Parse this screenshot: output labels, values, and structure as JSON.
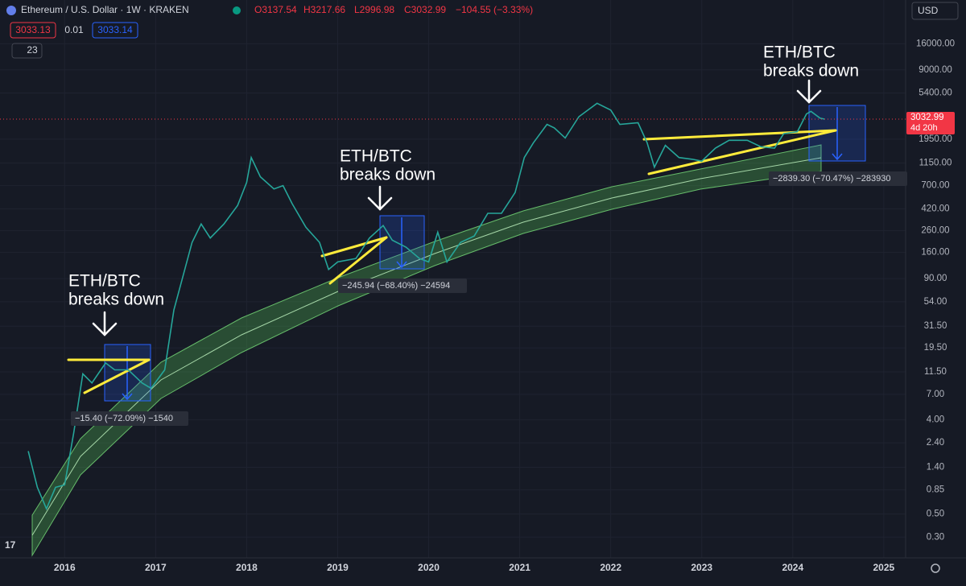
{
  "header": {
    "symbol": "Ethereum / U.S. Dollar · 1W · KRAKEN",
    "open": "O3137.54",
    "high": "H3217.66",
    "low": "L2996.98",
    "close": "C3032.99",
    "change": "−104.55 (−3.33%)",
    "bid": "3033.13",
    "spread": "0.01",
    "ask": "3033.14",
    "indicator_count": "23",
    "currency": "USD"
  },
  "chart_data": {
    "type": "line",
    "log_scale": true,
    "color": "#26a69a",
    "x": [
      2015.6,
      2015.7,
      2015.8,
      2015.9,
      2016.0,
      2016.1,
      2016.2,
      2016.3,
      2016.45,
      2016.55,
      2016.7,
      2016.85,
      2016.95,
      2017.1,
      2017.2,
      2017.4,
      2017.5,
      2017.6,
      2017.75,
      2017.9,
      2018.0,
      2018.05,
      2018.15,
      2018.3,
      2018.4,
      2018.5,
      2018.65,
      2018.8,
      2018.9,
      2019.0,
      2019.2,
      2019.35,
      2019.5,
      2019.6,
      2019.75,
      2019.9,
      2020.0,
      2020.1,
      2020.2,
      2020.35,
      2020.5,
      2020.65,
      2020.8,
      2020.95,
      2021.05,
      2021.15,
      2021.3,
      2021.38,
      2021.5,
      2021.65,
      2021.85,
      2022.0,
      2022.1,
      2022.3,
      2022.4,
      2022.48,
      2022.6,
      2022.75,
      2022.9,
      2023.0,
      2023.15,
      2023.3,
      2023.5,
      2023.65,
      2023.8,
      2023.9,
      2024.05,
      2024.15,
      2024.2,
      2024.3,
      2024.35
    ],
    "values": [
      2.0,
      0.9,
      0.56,
      0.9,
      0.95,
      3,
      11,
      9,
      14,
      12,
      12,
      9,
      8,
      12,
      45,
      200,
      300,
      220,
      300,
      450,
      750,
      1300,
      850,
      650,
      700,
      470,
      280,
      200,
      110,
      130,
      140,
      220,
      290,
      210,
      180,
      140,
      130,
      250,
      130,
      200,
      230,
      380,
      380,
      600,
      1300,
      1800,
      2700,
      2500,
      2000,
      3200,
      4300,
      3700,
      2700,
      2800,
      1800,
      1050,
      1700,
      1300,
      1250,
      1200,
      1600,
      1900,
      1900,
      1650,
      1600,
      2200,
      2300,
      3400,
      3600,
      3100,
      3032.99
    ],
    "price_label": "3032.99",
    "countdown": "4d 20h",
    "xlim": [
      2015.29,
      2025.24
    ],
    "xticks": [
      2016,
      2017,
      2018,
      2019,
      2020,
      2021,
      2022,
      2023,
      2024,
      2025
    ],
    "ylim": [
      0.19,
      42000
    ],
    "yticks": [
      {
        "value": 16000,
        "label": "16000.00"
      },
      {
        "value": 9000,
        "label": "9000.00"
      },
      {
        "value": 5400,
        "label": "5400.00"
      },
      {
        "value": 1950,
        "label": "1950.00"
      },
      {
        "value": 1150,
        "label": "1150.00"
      },
      {
        "value": 700,
        "label": "700.00"
      },
      {
        "value": 420,
        "label": "420.00"
      },
      {
        "value": 260,
        "label": "260.00"
      },
      {
        "value": 160,
        "label": "160.00"
      },
      {
        "value": 90,
        "label": "90.00"
      },
      {
        "value": 54,
        "label": "54.00"
      },
      {
        "value": 31.5,
        "label": "31.50"
      },
      {
        "value": 19.5,
        "label": "19.50"
      },
      {
        "value": 11.5,
        "label": "11.50"
      },
      {
        "value": 7,
        "label": "7.00"
      },
      {
        "value": 4,
        "label": "4.00"
      },
      {
        "value": 2.4,
        "label": "2.40"
      },
      {
        "value": 1.4,
        "label": "1.40"
      },
      {
        "value": 0.85,
        "label": "0.85"
      },
      {
        "value": 0.5,
        "label": "0.50"
      },
      {
        "value": 0.3,
        "label": "0.30"
      }
    ],
    "annotations": [
      [
        "ETH/BTC",
        "breaks down"
      ],
      [
        "ETH/BTC",
        "breaks down"
      ],
      [
        "ETH/BTC",
        "breaks down"
      ]
    ],
    "measurements": [
      "−15.40 (−72.09%) −1540",
      "−245.94 (−68.40%) −24594",
      "−2839.30 (−70.47%) −283930"
    ]
  }
}
